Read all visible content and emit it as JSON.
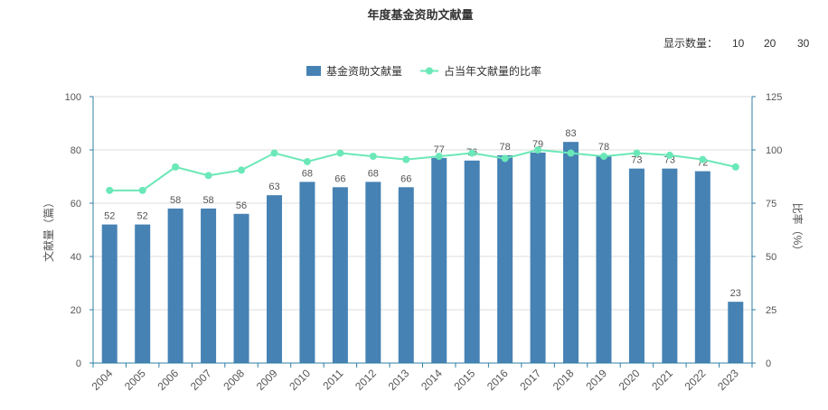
{
  "page": {
    "title": "年度基金资助文献量",
    "display_count_label": "显示数量：",
    "display_options": [
      {
        "label": "10",
        "color": "#0000cc"
      },
      {
        "label": "20",
        "color": "#cc0000"
      },
      {
        "label": "30",
        "color": "#000099"
      }
    ]
  },
  "colors": {
    "bar": "#4682b4",
    "line": "#6be8b8",
    "grid": "#dddddd",
    "axis": "#2f7fa6"
  },
  "chart_data": {
    "type": "bar",
    "title": "年度基金资助文献量",
    "categories": [
      "2004",
      "2005",
      "2006",
      "2007",
      "2008",
      "2009",
      "2010",
      "2011",
      "2012",
      "2013",
      "2014",
      "2015",
      "2016",
      "2017",
      "2018",
      "2019",
      "2020",
      "2021",
      "2022",
      "2023"
    ],
    "series": [
      {
        "name": "基金资助文献量",
        "type": "bar",
        "axis": "left",
        "values": [
          52,
          52,
          58,
          58,
          56,
          63,
          68,
          66,
          68,
          66,
          77,
          76,
          78,
          79,
          83,
          78,
          73,
          73,
          72,
          23
        ],
        "labels": [
          "52",
          "52",
          "58",
          "58",
          "56",
          "63",
          "68",
          "66",
          "68",
          "66",
          "77",
          "76",
          "78",
          "79",
          "83",
          "78",
          "73",
          "73",
          "72",
          "23"
        ]
      },
      {
        "name": "占当年文献量的比率",
        "type": "line",
        "axis": "right",
        "values": [
          81,
          81,
          92,
          88,
          90.5,
          98.5,
          94.5,
          98.5,
          97,
          95.5,
          97,
          98.5,
          96,
          100,
          98.5,
          97,
          98.5,
          97.5,
          95.5,
          92
        ]
      }
    ],
    "ylabel": "文献量（篇）",
    "y2label": "比率（%）",
    "ylim": [
      0,
      100
    ],
    "y2lim": [
      0,
      125
    ],
    "yticks": [
      "0",
      "20",
      "40",
      "60",
      "80",
      "100"
    ],
    "y2ticks": [
      "0",
      "25",
      "50",
      "75",
      "100",
      "125"
    ],
    "grid": true,
    "legend": "top-center"
  }
}
